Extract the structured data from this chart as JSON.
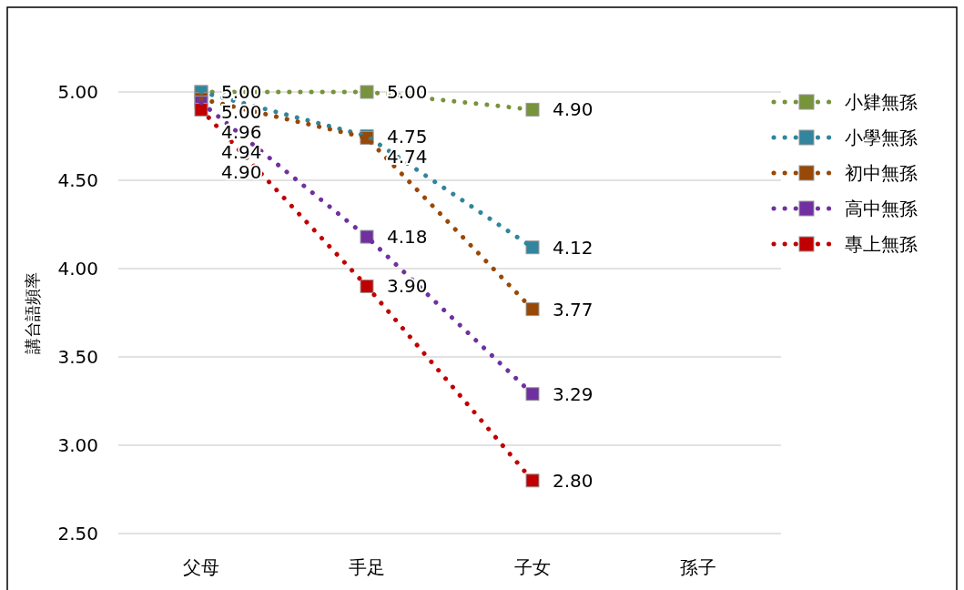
{
  "chart_data": {
    "type": "line",
    "ylabel": "講台語頻率",
    "categories": [
      "父母",
      "手足",
      "子女",
      "孫子"
    ],
    "series": [
      {
        "name": "小肄無孫",
        "color": "#77933c",
        "values": [
          5.0,
          5.0,
          4.9,
          null
        ],
        "value_labels": [
          "5.00",
          "5.00",
          "4.90",
          null
        ]
      },
      {
        "name": "小學無孫",
        "color": "#31859c",
        "values": [
          5.0,
          4.75,
          4.12,
          null
        ],
        "value_labels": [
          "5.00",
          "4.75",
          "4.12",
          null
        ]
      },
      {
        "name": "初中無孫",
        "color": "#984807",
        "values": [
          4.96,
          4.74,
          3.77,
          null
        ],
        "value_labels": [
          "4.96",
          "4.74",
          "3.77",
          null
        ]
      },
      {
        "name": "高中無孫",
        "color": "#7030a0",
        "values": [
          4.94,
          4.18,
          3.29,
          null
        ],
        "value_labels": [
          "4.94",
          "4.18",
          "3.29",
          null
        ]
      },
      {
        "name": "專上無孫",
        "color": "#c00000",
        "values": [
          4.9,
          3.9,
          2.8,
          null
        ],
        "value_labels": [
          "4.90",
          "3.90",
          "2.80",
          null
        ]
      }
    ],
    "ylim": [
      2.5,
      5.0
    ],
    "yticks": [
      {
        "value": 2.5,
        "label": "2.50"
      },
      {
        "value": 3.0,
        "label": "3.00"
      },
      {
        "value": 3.5,
        "label": "3.50"
      },
      {
        "value": 4.0,
        "label": "4.00"
      },
      {
        "value": 4.5,
        "label": "4.50"
      },
      {
        "value": 5.0,
        "label": "5.00"
      }
    ],
    "grid": "y",
    "legend": "right",
    "marker": "square",
    "line_style": "dotted"
  }
}
